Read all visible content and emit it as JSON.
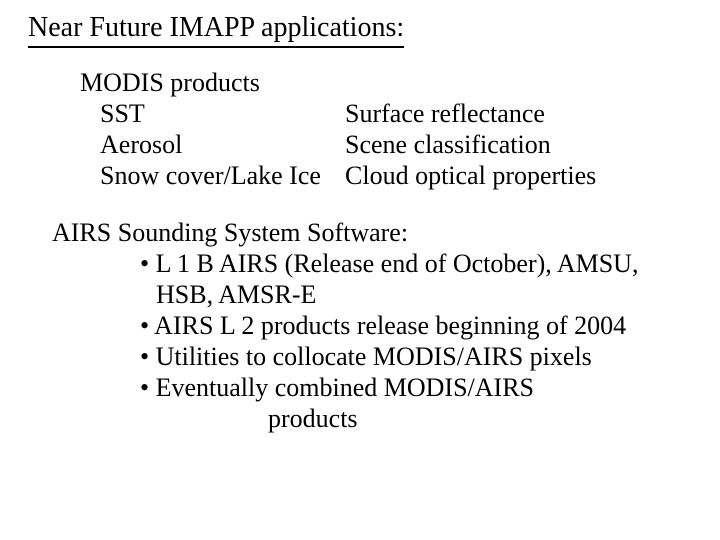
{
  "title": "Near Future IMAPP applications:",
  "modis": {
    "heading": "MODIS products",
    "row1c1": "SST",
    "row1c2": "Surface reflectance",
    "row2c1": "Aerosol",
    "row2c2": "Scene classification",
    "row3c1": "Snow cover/Lake Ice",
    "row3c2": "Cloud optical properties"
  },
  "airs": {
    "heading": "AIRS Sounding System Software:",
    "b1": "•  L 1 B AIRS (Release end of October), AMSU,",
    "b1c": "HSB, AMSR-E",
    "b2": "• AIRS L 2 products release beginning of 2004",
    "b3": "• Utilities to collocate MODIS/AIRS pixels",
    "b4": "•  Eventually combined MODIS/AIRS",
    "b4c": "products"
  }
}
